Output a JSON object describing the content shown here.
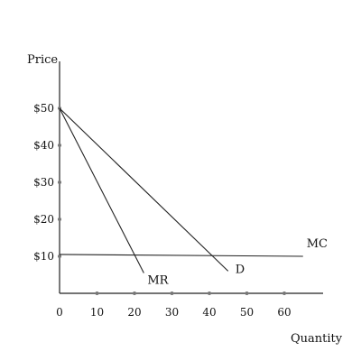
{
  "chart_data": {
    "type": "line",
    "xlabel": "Quantity",
    "ylabel": "Price",
    "xlim": [
      0,
      70
    ],
    "ylim": [
      0,
      55
    ],
    "x_ticks": [
      {
        "value": 0,
        "label": "0"
      },
      {
        "value": 10,
        "label": "10"
      },
      {
        "value": 20,
        "label": "20"
      },
      {
        "value": 30,
        "label": "30"
      },
      {
        "value": 40,
        "label": "40"
      },
      {
        "value": 50,
        "label": "50"
      },
      {
        "value": 60,
        "label": "60"
      }
    ],
    "y_ticks": [
      {
        "value": 10,
        "label": "$10"
      },
      {
        "value": 20,
        "label": "$20"
      },
      {
        "value": 30,
        "label": "$30"
      },
      {
        "value": 40,
        "label": "$40"
      },
      {
        "value": 50,
        "label": "$50"
      }
    ],
    "series": [
      {
        "name": "MR",
        "points": [
          [
            0,
            50
          ],
          [
            22.5,
            5.5
          ]
        ]
      },
      {
        "name": "D",
        "points": [
          [
            0,
            50
          ],
          [
            45,
            6
          ]
        ]
      },
      {
        "name": "MC",
        "points": [
          [
            0,
            10.5
          ],
          [
            65,
            10
          ]
        ]
      }
    ],
    "grid": false,
    "legend": "none"
  }
}
